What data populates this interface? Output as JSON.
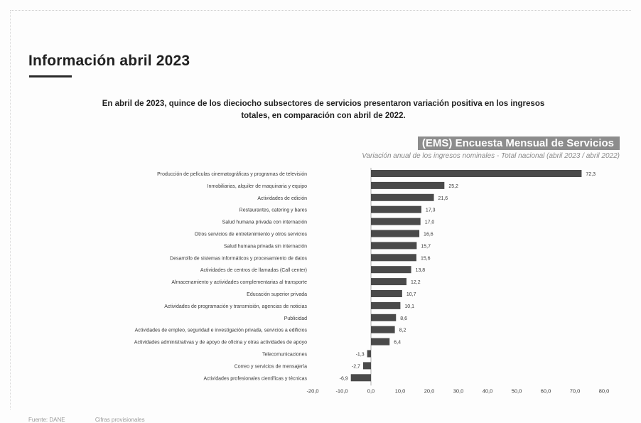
{
  "page": {
    "title": "Información abril 2023",
    "summary_line1": "En abril de 2023, quince de los dieciocho subsectores de servicios presentaron variación positiva en los ingresos",
    "summary_line2": "totales, en comparación con abril de 2022."
  },
  "chart_data": {
    "type": "bar",
    "orientation": "horizontal",
    "title": "(EMS) Encuesta Mensual de Servicios",
    "subtitle": "Variación anual de los ingresos nominales - Total nacional (abril 2023 / abril 2022)",
    "categories": [
      "Producción de películas cinematográficas y programas de televisión",
      "Inmobiliarias, alquiler de maquinaria y equipo",
      "Actividades de edición",
      "Restaurantes, catering y bares",
      "Salud humana privada con internación",
      "Otros servicios de entretenimiento y otros servicios",
      "Salud humana privada sin internación",
      "Desarrollo de sistemas informáticos y procesamiento de datos",
      "Actividades de centros de llamadas (Call center)",
      "Almacenamiento y actividades complementarias al transporte",
      "Educación superior privada",
      "Actividades de programación y transmisión, agencias de noticias",
      "Publicidad",
      "Actividades de empleo, seguridad e investigación privada, servicios a edificios",
      "Actividades administrativas y de apoyo de oficina y otras actividades de apoyo",
      "Telecomunicaciones",
      "Correo y servicios de mensajería",
      "Actividades profesionales científicas y técnicas"
    ],
    "values": [
      72.3,
      25.2,
      21.6,
      17.3,
      17.0,
      16.6,
      15.7,
      15.6,
      13.8,
      12.2,
      10.7,
      10.1,
      8.6,
      8.2,
      6.4,
      -1.3,
      -2.7,
      -6.9
    ],
    "value_labels": [
      "72,3",
      "25,2",
      "21,6",
      "17,3",
      "17,0",
      "16,6",
      "15,7",
      "15,6",
      "13,8",
      "12,2",
      "10,7",
      "10,1",
      "8,6",
      "8,2",
      "6,4",
      "-1,3",
      "-2,7",
      "-6,9"
    ],
    "xlim": [
      -20,
      80
    ],
    "xticks": [
      -20,
      -10,
      0,
      10,
      20,
      30,
      40,
      50,
      60,
      70,
      80
    ],
    "xtick_labels": [
      "-20,0",
      "-10,0",
      "0,0",
      "10,0",
      "20,0",
      "30,0",
      "40,0",
      "50,0",
      "60,0",
      "70,0",
      "80,0"
    ],
    "bar_color": "#4a4a4a",
    "grid": false
  },
  "footer": {
    "left": "Fuente: DANE",
    "right": "Cifras provisionales"
  }
}
